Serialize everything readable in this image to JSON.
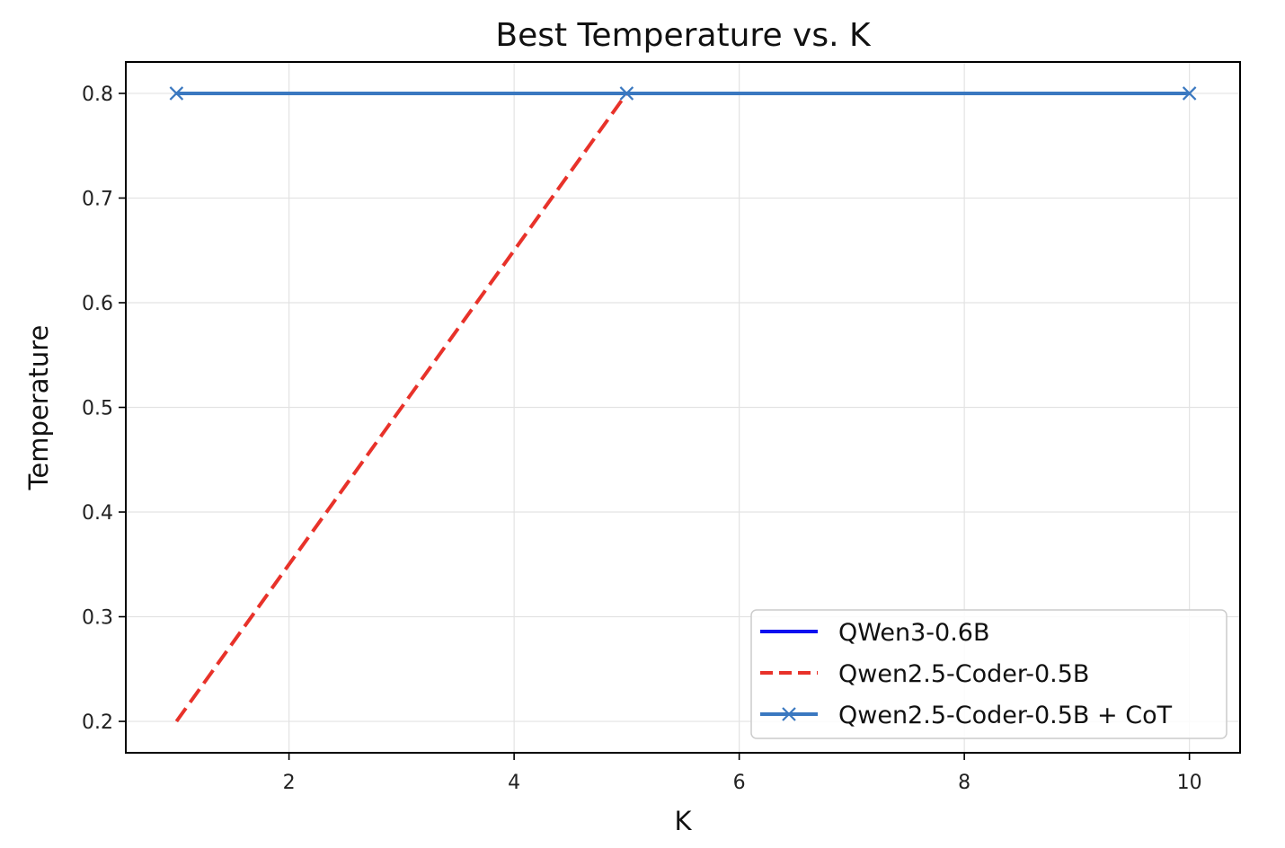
{
  "chart_data": {
    "type": "line",
    "title": "Best Temperature vs. K",
    "xlabel": "K",
    "ylabel": "Temperature",
    "xlim": [
      0.55,
      10.45
    ],
    "ylim": [
      0.17,
      0.83
    ],
    "xticks": [
      2,
      4,
      6,
      8,
      10
    ],
    "yticks": [
      0.2,
      0.3,
      0.4,
      0.5,
      0.6,
      0.7,
      0.8
    ],
    "xtick_labels": [
      "2",
      "4",
      "6",
      "8",
      "10"
    ],
    "ytick_labels": [
      "0.2",
      "0.3",
      "0.4",
      "0.5",
      "0.6",
      "0.7",
      "0.8"
    ],
    "grid": true,
    "legend_position": "lower-right",
    "series": [
      {
        "name": "QWen3-0.6B",
        "x": [
          1,
          5,
          10
        ],
        "y": [
          0.8,
          0.8,
          0.8
        ],
        "color": "#0a10f0",
        "dash": "solid",
        "marker": "none"
      },
      {
        "name": "Qwen2.5-Coder-0.5B",
        "x": [
          1,
          5,
          10
        ],
        "y": [
          0.2,
          0.8,
          0.8
        ],
        "color": "#e8322a",
        "dash": "dashed",
        "marker": "none"
      },
      {
        "name": "Qwen2.5-Coder-0.5B + CoT",
        "x": [
          1,
          5,
          10
        ],
        "y": [
          0.8,
          0.8,
          0.8
        ],
        "color": "#3a78c0",
        "dash": "solid",
        "marker": "x"
      }
    ]
  }
}
